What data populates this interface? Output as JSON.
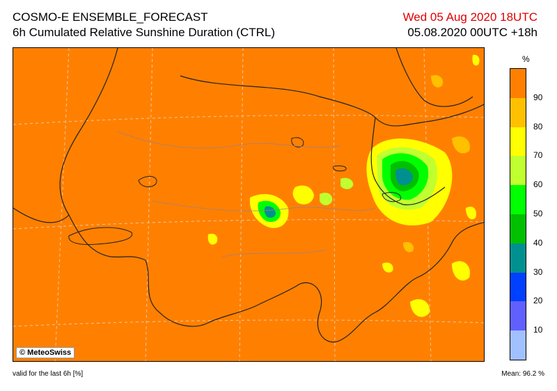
{
  "header": {
    "title": "COSMO-E ENSEMBLE_FORECAST",
    "subtitle": "6h Cumulated Relative Sunshine Duration (CTRL)",
    "valid_time": "Wed 05 Aug 2020 18UTC",
    "run_info": "05.08.2020 00UTC +18h"
  },
  "map": {
    "copyright": "© MeteoSwiss",
    "background_color": "#ff8000"
  },
  "legend": {
    "unit": "%",
    "bins": [
      {
        "label": "",
        "color": "#ff8000"
      },
      {
        "label": "90",
        "color": "#ffc000"
      },
      {
        "label": "80",
        "color": "#ffff00"
      },
      {
        "label": "70",
        "color": "#c0ff30"
      },
      {
        "label": "60",
        "color": "#00ff00"
      },
      {
        "label": "50",
        "color": "#00c000"
      },
      {
        "label": "40",
        "color": "#009090"
      },
      {
        "label": "30",
        "color": "#0040ff"
      },
      {
        "label": "20",
        "color": "#6060ff"
      },
      {
        "label": "10",
        "color": "#a0c0ff"
      }
    ]
  },
  "footer": {
    "validity": "valid for the last 6h [%]",
    "mean_label": "Mean:",
    "mean_value": "96.2 %"
  }
}
